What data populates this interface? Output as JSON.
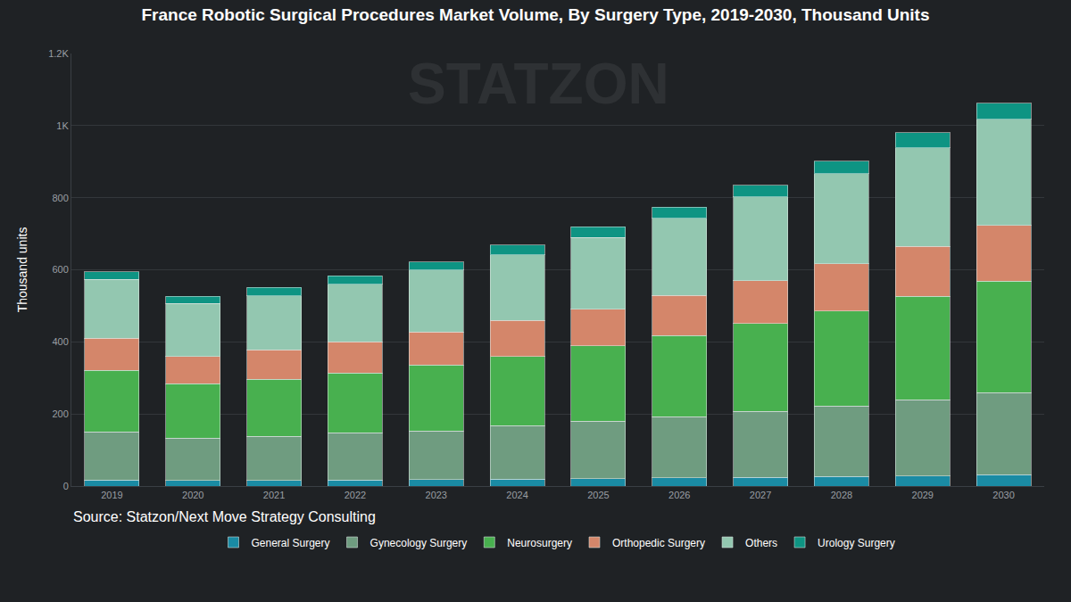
{
  "chart_data": {
    "type": "bar",
    "title": "France Robotic Surgical Procedures Market Volume, By Surgery Type, 2019-2030, Thousand Units",
    "y_label": "Thousand units",
    "source": "Source: Statzon/Next Move Strategy Consulting",
    "watermark": "STATZON",
    "categories": [
      "2019",
      "2020",
      "2021",
      "2022",
      "2023",
      "2024",
      "2025",
      "2026",
      "2027",
      "2028",
      "2029",
      "2030"
    ],
    "series": [
      {
        "name": "General Surgery",
        "color": "#1a8ba4",
        "values": [
          17,
          15,
          16,
          17,
          18,
          19,
          21,
          23,
          24,
          26,
          28,
          31
        ]
      },
      {
        "name": "Gynecology Surgery",
        "color": "#6f9c80",
        "values": [
          133,
          118,
          122,
          131,
          135,
          149,
          159,
          170,
          183,
          196,
          212,
          228
        ]
      },
      {
        "name": "Neurosurgery",
        "color": "#48b04f",
        "values": [
          171,
          151,
          158,
          166,
          183,
          192,
          209,
          224,
          244,
          264,
          286,
          310
        ]
      },
      {
        "name": "Orthopedic Surgery",
        "color": "#d4866a",
        "values": [
          89,
          76,
          82,
          86,
          91,
          99,
          102,
          112,
          119,
          131,
          139,
          154
        ]
      },
      {
        "name": "Others",
        "color": "#93c7b0",
        "values": [
          163,
          146,
          150,
          160,
          173,
          183,
          199,
          214,
          232,
          250,
          273,
          294
        ]
      },
      {
        "name": "Urology Surgery",
        "color": "#0e9483",
        "values": [
          22,
          20,
          23,
          23,
          22,
          27,
          29,
          31,
          33,
          34,
          42,
          45
        ]
      }
    ],
    "ylim": [
      0,
      1200
    ],
    "yticks": [
      0,
      200,
      400,
      600,
      800,
      {
        "value": 1000,
        "label": "1K"
      },
      {
        "value": 1200,
        "label": "1.2K"
      }
    ],
    "stacked": true,
    "grid": true,
    "legend": "bottom"
  }
}
